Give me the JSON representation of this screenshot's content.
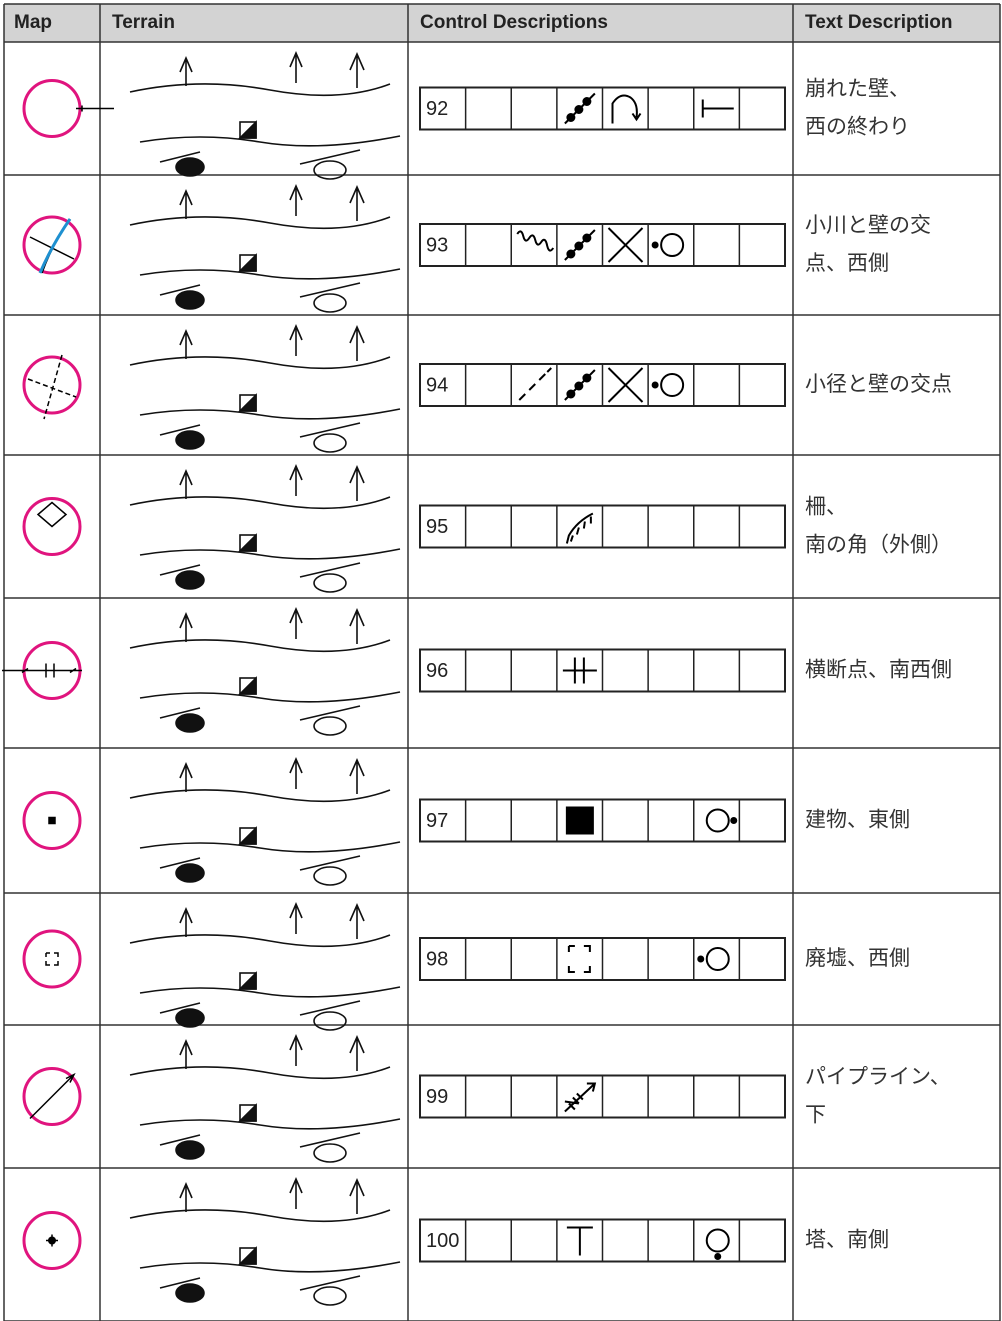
{
  "header": {
    "columns": [
      "Map",
      "Terrain",
      "Control Descriptions",
      "Text Description"
    ]
  },
  "rows": [
    {
      "number": "92",
      "text": [
        "崩れた壁、",
        "西の終わり"
      ]
    },
    {
      "number": "93",
      "text": [
        "小川と壁の交",
        "点、西側"
      ]
    },
    {
      "number": "94",
      "text": [
        "小径と壁の交点"
      ]
    },
    {
      "number": "95",
      "text": [
        "柵、",
        "南の角（外側）"
      ]
    },
    {
      "number": "96",
      "text": [
        "横断点、南西側"
      ]
    },
    {
      "number": "97",
      "text": [
        "建物、東側"
      ]
    },
    {
      "number": "98",
      "text": [
        "廃墟、西側"
      ]
    },
    {
      "number": "99",
      "text": [
        "パイプライン、",
        "下"
      ]
    },
    {
      "number": "100",
      "text": [
        "塔、南側"
      ]
    }
  ]
}
